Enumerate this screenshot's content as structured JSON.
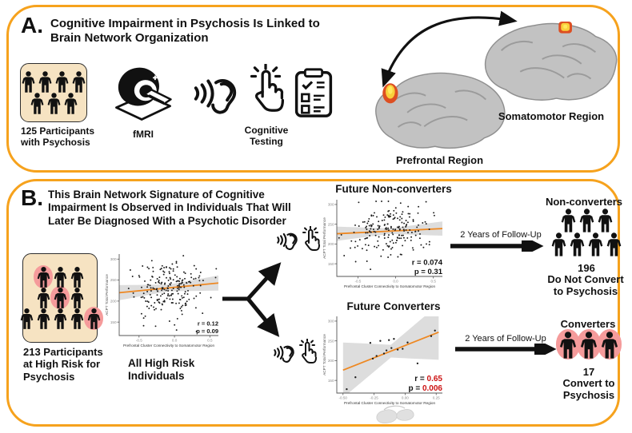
{
  "colors": {
    "panel_border": "#F6A21D",
    "box_fill": "#F6E3C2",
    "highlight_pink": "#F59B9B",
    "regression_orange": "#EE8822",
    "band_gray": "#D9D9D9",
    "stat_red": "#CC1111",
    "brain_gray": "#C2C2C2",
    "brain_spot_yellow": "#F9D03C",
    "brain_spot_red": "#DD4F22"
  },
  "panel_a": {
    "label": "A.",
    "title": "Cognitive Impairment in Psychosis Is Linked to\nBrain Network Organization",
    "participants": {
      "rows": [
        [
          0,
          0,
          0,
          0
        ],
        [
          0,
          0,
          0
        ]
      ],
      "caption": "125 Participants\nwith Psychosis"
    },
    "fmri_label": "fMRI",
    "cognitive_label": "Cognitive\nTesting",
    "prefrontal_label": "Prefrontal Region",
    "somatomotor_label": "Somatomotor Region"
  },
  "panel_b": {
    "label": "B.",
    "title": "This Brain Network Signature of Cognitive\nImpairment Is Observed in Individuals That Will\nLater Be Diagnosed With a Psychotic Disorder",
    "high_risk": {
      "rows": [
        [
          1,
          0,
          0
        ],
        [
          0,
          1,
          0
        ],
        [
          0,
          0,
          0,
          0,
          1
        ]
      ],
      "caption": "213 Participants\nat High Risk for\nPsychosis"
    },
    "followup_top": "2 Years of Follow-Up",
    "followup_bottom": "2 Years of Follow-Up",
    "nonconverters_group": {
      "title": "Non-converters",
      "rows": [
        [
          0,
          0,
          0
        ],
        [
          0,
          0,
          0,
          0
        ]
      ],
      "count": "196",
      "caption": "Do Not Convert\nto Psychosis"
    },
    "converters_group": {
      "title": "Converters",
      "rows": [
        [
          1,
          1,
          1
        ]
      ],
      "count": "17",
      "caption": "Convert to\nPsychosis"
    }
  },
  "chart_data": [
    {
      "id": "all-high-risk",
      "type": "scatter",
      "title": "All High Risk\nIndividuals",
      "xlabel": "Prefrontal Cluster Connectivity to Somatomotor Region",
      "ylabel": "ACPT Total Performance",
      "xlim": [
        -0.78,
        0.62
      ],
      "ylim": [
        118,
        312
      ],
      "xticks": [
        -0.5,
        0.0,
        0.5
      ],
      "xtick_labels": [
        "-0.5",
        "0.0",
        "0.5"
      ],
      "yticks": [
        150,
        200,
        250,
        300
      ],
      "n": 213,
      "seed": 11,
      "cloud_model": {
        "cx": -0.08,
        "sx": 0.26,
        "sy": 34
      },
      "regression": {
        "x1": -0.78,
        "y1": 220,
        "x2": 0.62,
        "y2": 243
      },
      "band": {
        "base": 8,
        "flare": 10
      },
      "stats": {
        "r_text": "r = ",
        "r_value": "0.12",
        "p_text": "p = ",
        "p_value": "0.09",
        "value_color": "#111111",
        "size": 7.5
      }
    },
    {
      "id": "future-nonconverters",
      "type": "scatter",
      "title": "Future Non-converters",
      "xlabel": "Prefrontal Cluster Connectivity to Somatomotor Region",
      "ylabel": "ACPT Total Performance",
      "xlim": [
        -0.78,
        0.62
      ],
      "ylim": [
        118,
        312
      ],
      "xticks": [
        -0.5,
        0.0,
        0.5
      ],
      "xtick_labels": [
        "-0.5",
        "0.0",
        "0.5"
      ],
      "yticks": [
        150,
        200,
        250,
        300
      ],
      "n": 196,
      "seed": 23,
      "cloud_model": {
        "cx": -0.08,
        "sx": 0.26,
        "sy": 35
      },
      "regression": {
        "x1": -0.78,
        "y1": 226,
        "x2": 0.62,
        "y2": 239
      },
      "band": {
        "base": 7,
        "flare": 11
      },
      "stats": {
        "r_text": "r = ",
        "r_value": "0.074",
        "p_text": "p = ",
        "p_value": "0.31",
        "value_color": "#111111",
        "size": 9.5
      }
    },
    {
      "id": "future-converters",
      "type": "scatter",
      "title": "Future Converters",
      "xlabel": "Prefrontal Cluster Connectivity to Somatomotor Region",
      "ylabel": "ACPT Total Performance",
      "xlim": [
        -0.55,
        0.3
      ],
      "ylim": [
        118,
        312
      ],
      "xticks": [
        -0.5,
        -0.25,
        0.0,
        0.25
      ],
      "xtick_labels": [
        "-0.50",
        "-0.25",
        "0.00",
        "0.25"
      ],
      "yticks": [
        150,
        200,
        250,
        300
      ],
      "n": 17,
      "points": [
        [
          -0.47,
          128
        ],
        [
          -0.4,
          158
        ],
        [
          -0.28,
          245
        ],
        [
          -0.26,
          205
        ],
        [
          -0.23,
          212
        ],
        [
          -0.2,
          250
        ],
        [
          -0.17,
          218
        ],
        [
          -0.15,
          226
        ],
        [
          -0.13,
          252
        ],
        [
          -0.11,
          232
        ],
        [
          -0.09,
          255
        ],
        [
          -0.06,
          228
        ],
        [
          -0.02,
          230
        ],
        [
          0.02,
          246
        ],
        [
          0.1,
          193
        ],
        [
          0.21,
          262
        ],
        [
          0.24,
          276
        ]
      ],
      "regression": {
        "x1": -0.5,
        "y1": 176,
        "x2": 0.27,
        "y2": 272
      },
      "band": {
        "base": 16,
        "flare": 54
      },
      "stats": {
        "r_text": "r = ",
        "r_value": "0.65",
        "p_text": "p = ",
        "p_value": "0.006",
        "value_color": "#CC1111",
        "size": 10
      }
    }
  ]
}
